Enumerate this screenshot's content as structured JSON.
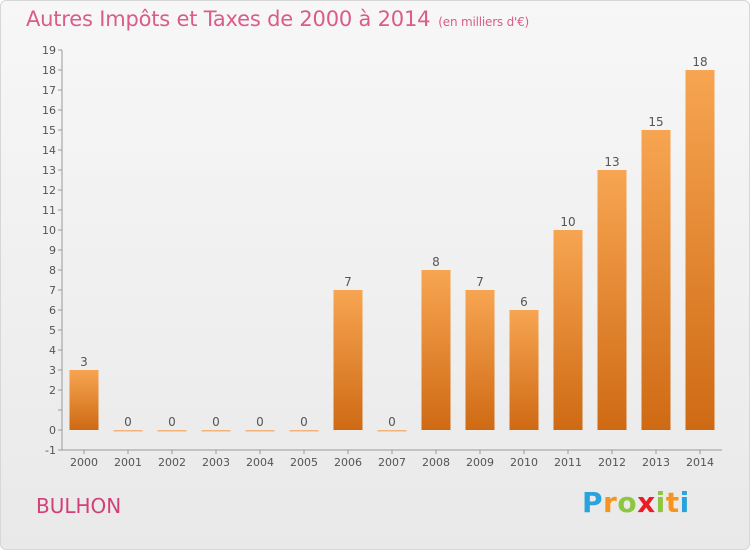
{
  "title": "Autres Impôts et Taxes de 2000 à 2014",
  "subtitle": "(en milliers d'€)",
  "commune": "BULHON",
  "logo": {
    "letters": [
      "P",
      "r",
      "o",
      "x",
      "i",
      "t",
      "i"
    ],
    "colors": [
      "#2aa3dc",
      "#f7941d",
      "#8dc63f",
      "#ed1c24",
      "#8dc63f",
      "#f7941d",
      "#2aa3dc"
    ]
  },
  "colors": {
    "bar_top": "#f7a552",
    "bar_bottom": "#cf6a14",
    "zero_bar": "#f3b27a",
    "title": "#d95c8a"
  },
  "chart_data": {
    "type": "bar",
    "categories": [
      "2000",
      "2001",
      "2002",
      "2003",
      "2004",
      "2005",
      "2006",
      "2007",
      "2008",
      "2009",
      "2010",
      "2011",
      "2012",
      "2013",
      "2014"
    ],
    "values": [
      3,
      0,
      0,
      0,
      0,
      0,
      7,
      0,
      8,
      7,
      6,
      10,
      13,
      15,
      18
    ],
    "data_labels": [
      "3",
      "0",
      "0",
      "0",
      "0",
      "0",
      "7",
      "0",
      "8",
      "7",
      "6",
      "10",
      "13",
      "15",
      "18"
    ],
    "yticks": [
      -1,
      0,
      1,
      2,
      3,
      4,
      5,
      6,
      7,
      8,
      9,
      10,
      11,
      12,
      13,
      14,
      15,
      16,
      17,
      18,
      19
    ],
    "ytick_labels": [
      "-1",
      "0",
      "",
      "2",
      "3",
      "4",
      "5",
      "6",
      "7",
      "8",
      "9",
      "10",
      "11",
      "12",
      "13",
      "14",
      "15",
      "16",
      "17",
      "18",
      "19"
    ],
    "ylim": [
      -1,
      19
    ],
    "grid": false,
    "legend": "none"
  }
}
